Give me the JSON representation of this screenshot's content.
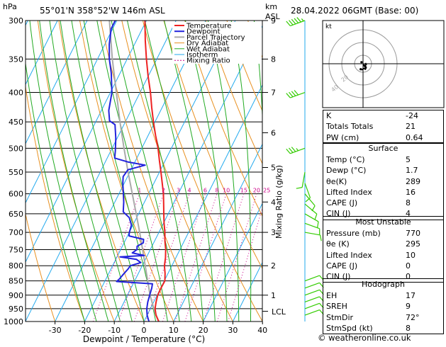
{
  "header": {
    "location": "55°01'N  358°52'W  146m  ASL",
    "datetime": "28.04.2022  06GMT  (Base: 00)",
    "hpa": "hPa",
    "km": "km",
    "asl": "ASL"
  },
  "chart_data": {
    "type": "skew-t",
    "xlabel": "Dewpoint / Temperature (°C)",
    "mixing_axis_label": "Mixing Ratio (g/kg)",
    "pressure_ticks": [
      300,
      350,
      400,
      450,
      500,
      550,
      600,
      650,
      700,
      750,
      800,
      850,
      900,
      950,
      1000
    ],
    "temperature_ticks": [
      -30,
      -20,
      -10,
      0,
      10,
      20,
      30,
      40
    ],
    "km_ticks": [
      {
        "p": 300,
        "label": "9"
      },
      {
        "p": 350,
        "label": "8"
      },
      {
        "p": 400,
        "label": "7"
      },
      {
        "p": 470,
        "label": "6"
      },
      {
        "p": 540,
        "label": "5"
      },
      {
        "p": 620,
        "label": "4"
      },
      {
        "p": 700,
        "label": "3"
      },
      {
        "p": 800,
        "label": "2"
      },
      {
        "p": 900,
        "label": "1"
      }
    ],
    "lcl_label": "LCL",
    "lcl_pressure": 960,
    "mixing_ratio_labels": [
      "1",
      "2",
      "3",
      "4",
      "6",
      "8",
      "10",
      "15",
      "20",
      "25"
    ],
    "mixing_ratio_values": [
      1,
      2,
      3,
      4,
      6,
      8,
      10,
      15,
      20,
      25
    ],
    "legend": [
      "Temperature",
      "Dewpoint",
      "Parcel Trajectory",
      "Dry Adiabat",
      "Wet Adiabat",
      "Isotherm",
      "Mixing Ratio"
    ],
    "colors": {
      "temperature": "#ee2222",
      "dewpoint": "#2222dd",
      "parcel": "#aaaaaa",
      "dry_adiabat": "#e89020",
      "wet_adiabat": "#22aa22",
      "isotherm": "#22aaee",
      "mixing_ratio": "#cc0088",
      "wind_barb": "#33cc00"
    },
    "temperature_profile": [
      [
        1000,
        5.0
      ],
      [
        975,
        3.0
      ],
      [
        950,
        1.6
      ],
      [
        925,
        0.8
      ],
      [
        900,
        0.2
      ],
      [
        875,
        0.1
      ],
      [
        850,
        0.2
      ],
      [
        825,
        -1.0
      ],
      [
        800,
        -2.5
      ],
      [
        775,
        -3.5
      ],
      [
        750,
        -4.8
      ],
      [
        725,
        -6.5
      ],
      [
        700,
        -8.0
      ],
      [
        675,
        -9.8
      ],
      [
        650,
        -11.5
      ],
      [
        625,
        -13.2
      ],
      [
        600,
        -15.0
      ],
      [
        575,
        -17.2
      ],
      [
        550,
        -19.5
      ],
      [
        525,
        -22.0
      ],
      [
        500,
        -24.5
      ],
      [
        475,
        -27.5
      ],
      [
        450,
        -30.5
      ],
      [
        425,
        -33.5
      ],
      [
        400,
        -36.5
      ],
      [
        375,
        -40.0
      ],
      [
        350,
        -43.5
      ],
      [
        325,
        -47.0
      ],
      [
        300,
        -50.5
      ]
    ],
    "dewpoint_profile": [
      [
        1000,
        1.7
      ],
      [
        975,
        0.0
      ],
      [
        950,
        -1.2
      ],
      [
        925,
        -2.0
      ],
      [
        900,
        -2.5
      ],
      [
        875,
        -3.0
      ],
      [
        860,
        -3.5
      ],
      [
        852,
        -16.0
      ],
      [
        845,
        -15.5
      ],
      [
        830,
        -15.0
      ],
      [
        810,
        -14.2
      ],
      [
        800,
        -14.0
      ],
      [
        790,
        -11.0
      ],
      [
        780,
        -13.0
      ],
      [
        772,
        -19.0
      ],
      [
        768,
        -11.0
      ],
      [
        760,
        -15.5
      ],
      [
        750,
        -14.5
      ],
      [
        740,
        -15.0
      ],
      [
        730,
        -13.5
      ],
      [
        720,
        -14.0
      ],
      [
        710,
        -19.5
      ],
      [
        700,
        -20.0
      ],
      [
        680,
        -20.5
      ],
      [
        660,
        -22.5
      ],
      [
        645,
        -25.5
      ],
      [
        620,
        -27.0
      ],
      [
        600,
        -28.5
      ],
      [
        575,
        -30.5
      ],
      [
        560,
        -31.5
      ],
      [
        545,
        -31.0
      ],
      [
        535,
        -26.0
      ],
      [
        528,
        -32.5
      ],
      [
        520,
        -37.5
      ],
      [
        505,
        -38.5
      ],
      [
        480,
        -40.5
      ],
      [
        455,
        -43.0
      ],
      [
        448,
        -45.5
      ],
      [
        430,
        -47.5
      ],
      [
        400,
        -49.5
      ],
      [
        370,
        -53.0
      ],
      [
        350,
        -56.0
      ],
      [
        330,
        -58.5
      ],
      [
        315,
        -60.0
      ],
      [
        310,
        -60.5
      ],
      [
        300,
        -60.5
      ]
    ],
    "parcel_profile": [
      [
        1000,
        5.0
      ],
      [
        960,
        1.9
      ],
      [
        900,
        -2.4
      ],
      [
        850,
        -5.6
      ],
      [
        800,
        -9.0
      ],
      [
        750,
        -12.6
      ],
      [
        700,
        -16.5
      ],
      [
        650,
        -20.8
      ],
      [
        600,
        -25.5
      ],
      [
        550,
        -30.6
      ],
      [
        500,
        -36.0
      ],
      [
        450,
        -41.8
      ],
      [
        400,
        -48.0
      ],
      [
        350,
        -55.0
      ],
      [
        300,
        -62.5
      ]
    ],
    "wind_barbs": [
      {
        "p": 300,
        "dir": 250,
        "spd": 55
      },
      {
        "p": 400,
        "dir": 250,
        "spd": 40
      },
      {
        "p": 500,
        "dir": 250,
        "spd": 35
      },
      {
        "p": 550,
        "dir": 190,
        "spd": 12
      },
      {
        "p": 575,
        "dir": 160,
        "spd": 10
      },
      {
        "p": 600,
        "dir": 140,
        "spd": 10
      },
      {
        "p": 625,
        "dir": 130,
        "spd": 10
      },
      {
        "p": 650,
        "dir": 120,
        "spd": 10
      },
      {
        "p": 675,
        "dir": 110,
        "spd": 10
      },
      {
        "p": 700,
        "dir": 100,
        "spd": 10
      },
      {
        "p": 850,
        "dir": 70,
        "spd": 12
      },
      {
        "p": 875,
        "dir": 70,
        "spd": 12
      },
      {
        "p": 900,
        "dir": 70,
        "spd": 12
      },
      {
        "p": 925,
        "dir": 70,
        "spd": 10
      },
      {
        "p": 950,
        "dir": 70,
        "spd": 8
      },
      {
        "p": 975,
        "dir": 70,
        "spd": 8
      }
    ]
  },
  "hodograph": {
    "label": "kt",
    "ring_labels": [
      "20",
      "40"
    ],
    "trace": [
      [
        -2,
        -8
      ],
      [
        1,
        -6
      ],
      [
        3,
        -7
      ],
      [
        4,
        -5
      ],
      [
        2,
        -3
      ],
      [
        4,
        -1
      ],
      [
        3,
        1
      ]
    ],
    "points": [
      [
        -3,
        -7
      ],
      [
        3,
        -4
      ],
      [
        -2,
        2
      ],
      [
        1,
        -2
      ]
    ]
  },
  "indices": {
    "rows": [
      {
        "k": "K",
        "v": "-24"
      },
      {
        "k": "Totals Totals",
        "v": "21"
      },
      {
        "k": "PW (cm)",
        "v": "0.64"
      }
    ]
  },
  "surface": {
    "title": "Surface",
    "rows": [
      {
        "k": "Temp (°C)",
        "v": "5"
      },
      {
        "k": "Dewp (°C)",
        "v": "1.7"
      },
      {
        "k": "θe(K)",
        "v": "289"
      },
      {
        "k": "Lifted Index",
        "v": "16"
      },
      {
        "k": "CAPE (J)",
        "v": "8"
      },
      {
        "k": "CIN (J)",
        "v": "4"
      }
    ]
  },
  "most_unstable": {
    "title": "Most Unstable",
    "rows": [
      {
        "k": "Pressure (mb)",
        "v": "770"
      },
      {
        "k": "θe (K)",
        "v": "295"
      },
      {
        "k": "Lifted Index",
        "v": "10"
      },
      {
        "k": "CAPE (J)",
        "v": "0"
      },
      {
        "k": "CIN (J)",
        "v": "0"
      }
    ]
  },
  "hodograph_table": {
    "title": "Hodograph",
    "rows": [
      {
        "k": "EH",
        "v": "17"
      },
      {
        "k": "SREH",
        "v": "9"
      },
      {
        "k": "StmDir",
        "v": "72°"
      },
      {
        "k": "StmSpd (kt)",
        "v": "8"
      }
    ]
  },
  "footer": {
    "text": "© weatheronline.co.uk"
  }
}
